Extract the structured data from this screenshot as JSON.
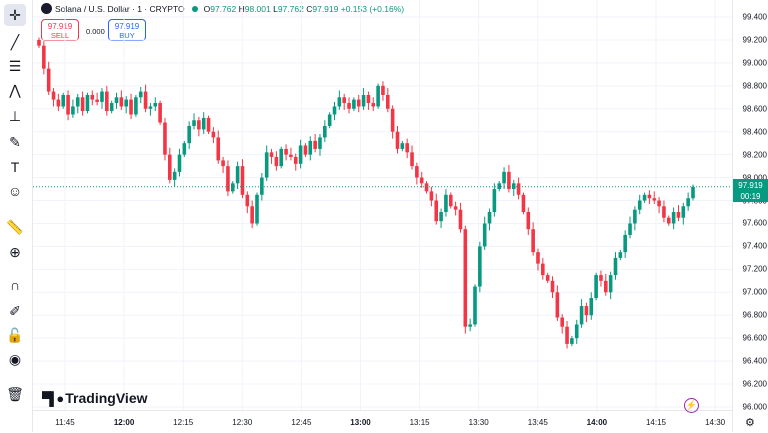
{
  "symbol": {
    "title": "Solana / U.S. Dollar · 1 · CRYPTO",
    "o_label": "O",
    "o": "97.762",
    "h_label": "H",
    "h": "98.001",
    "l_label": "L",
    "l": "97.762",
    "c_label": "C",
    "c": "97.919",
    "change": "+0.153 (+0.16%)"
  },
  "trade": {
    "sell_price": "97.919",
    "sell_label": "SELL",
    "spread": "0.000",
    "buy_price": "97.919",
    "buy_label": "BUY"
  },
  "current_price": {
    "price": "97.919",
    "countdown": "00:19"
  },
  "brand": {
    "name": "TradingView"
  },
  "toolbar": {
    "icons": [
      "crosshair-icon",
      "trend-line-icon",
      "horizontal-lines-icon",
      "pattern-icon",
      "projection-icon",
      "brush-icon",
      "text-icon",
      "emoji-icon",
      "ruler-icon",
      "zoom-in-icon",
      "magnet-icon",
      "lock-pencil-icon",
      "unlock-icon",
      "eye-icon",
      "trash-icon"
    ]
  },
  "colors": {
    "up": "#089981",
    "down": "#f23645",
    "grid": "#f0f3fa"
  },
  "chart_data": {
    "type": "candlestick",
    "price_ticks": [
      "99.400",
      "99.200",
      "99.000",
      "98.800",
      "98.600",
      "98.400",
      "98.200",
      "98.000",
      "97.800",
      "97.600",
      "97.400",
      "97.200",
      "97.000",
      "96.800",
      "96.600",
      "96.400",
      "96.200",
      "96.000"
    ],
    "time_ticks": [
      "11:45",
      "12:00",
      "12:15",
      "12:30",
      "12:45",
      "13:00",
      "13:15",
      "13:30",
      "13:45",
      "14:00",
      "14:15",
      "14:30"
    ],
    "time_ticks_bold": [
      false,
      true,
      false,
      false,
      false,
      true,
      false,
      false,
      false,
      true,
      false,
      false
    ],
    "ylim": [
      96.0,
      99.4
    ],
    "closes": [
      99.15,
      98.95,
      98.75,
      98.68,
      98.62,
      98.72,
      98.55,
      98.62,
      98.7,
      98.58,
      98.72,
      98.68,
      98.66,
      98.75,
      98.58,
      98.65,
      98.7,
      98.62,
      98.68,
      98.55,
      98.7,
      98.75,
      98.6,
      98.62,
      98.65,
      98.48,
      98.2,
      97.98,
      98.05,
      98.2,
      98.3,
      98.45,
      98.5,
      98.42,
      98.52,
      98.4,
      98.35,
      98.15,
      98.1,
      97.88,
      97.95,
      98.1,
      97.85,
      97.75,
      97.6,
      97.85,
      98.0,
      98.22,
      98.18,
      98.1,
      98.25,
      98.2,
      98.18,
      98.12,
      98.28,
      98.2,
      98.32,
      98.25,
      98.35,
      98.45,
      98.55,
      98.62,
      98.7,
      98.65,
      98.6,
      98.68,
      98.62,
      98.72,
      98.65,
      98.62,
      98.8,
      98.72,
      98.6,
      98.4,
      98.25,
      98.3,
      98.22,
      98.1,
      98.0,
      97.95,
      97.88,
      97.8,
      97.62,
      97.7,
      97.85,
      97.75,
      97.72,
      97.55,
      96.7,
      96.72,
      97.05,
      97.4,
      97.6,
      97.7,
      97.9,
      97.95,
      98.05,
      97.9,
      97.95,
      97.85,
      97.7,
      97.55,
      97.35,
      97.25,
      97.15,
      97.1,
      97.0,
      96.78,
      96.7,
      96.55,
      96.6,
      96.72,
      96.88,
      96.8,
      96.95,
      97.15,
      97.1,
      97.0,
      97.15,
      97.3,
      97.35,
      97.5,
      97.6,
      97.72,
      97.8,
      97.85,
      97.82,
      97.8,
      97.75,
      97.65,
      97.6,
      97.7,
      97.65,
      97.75,
      97.82,
      97.92
    ]
  }
}
